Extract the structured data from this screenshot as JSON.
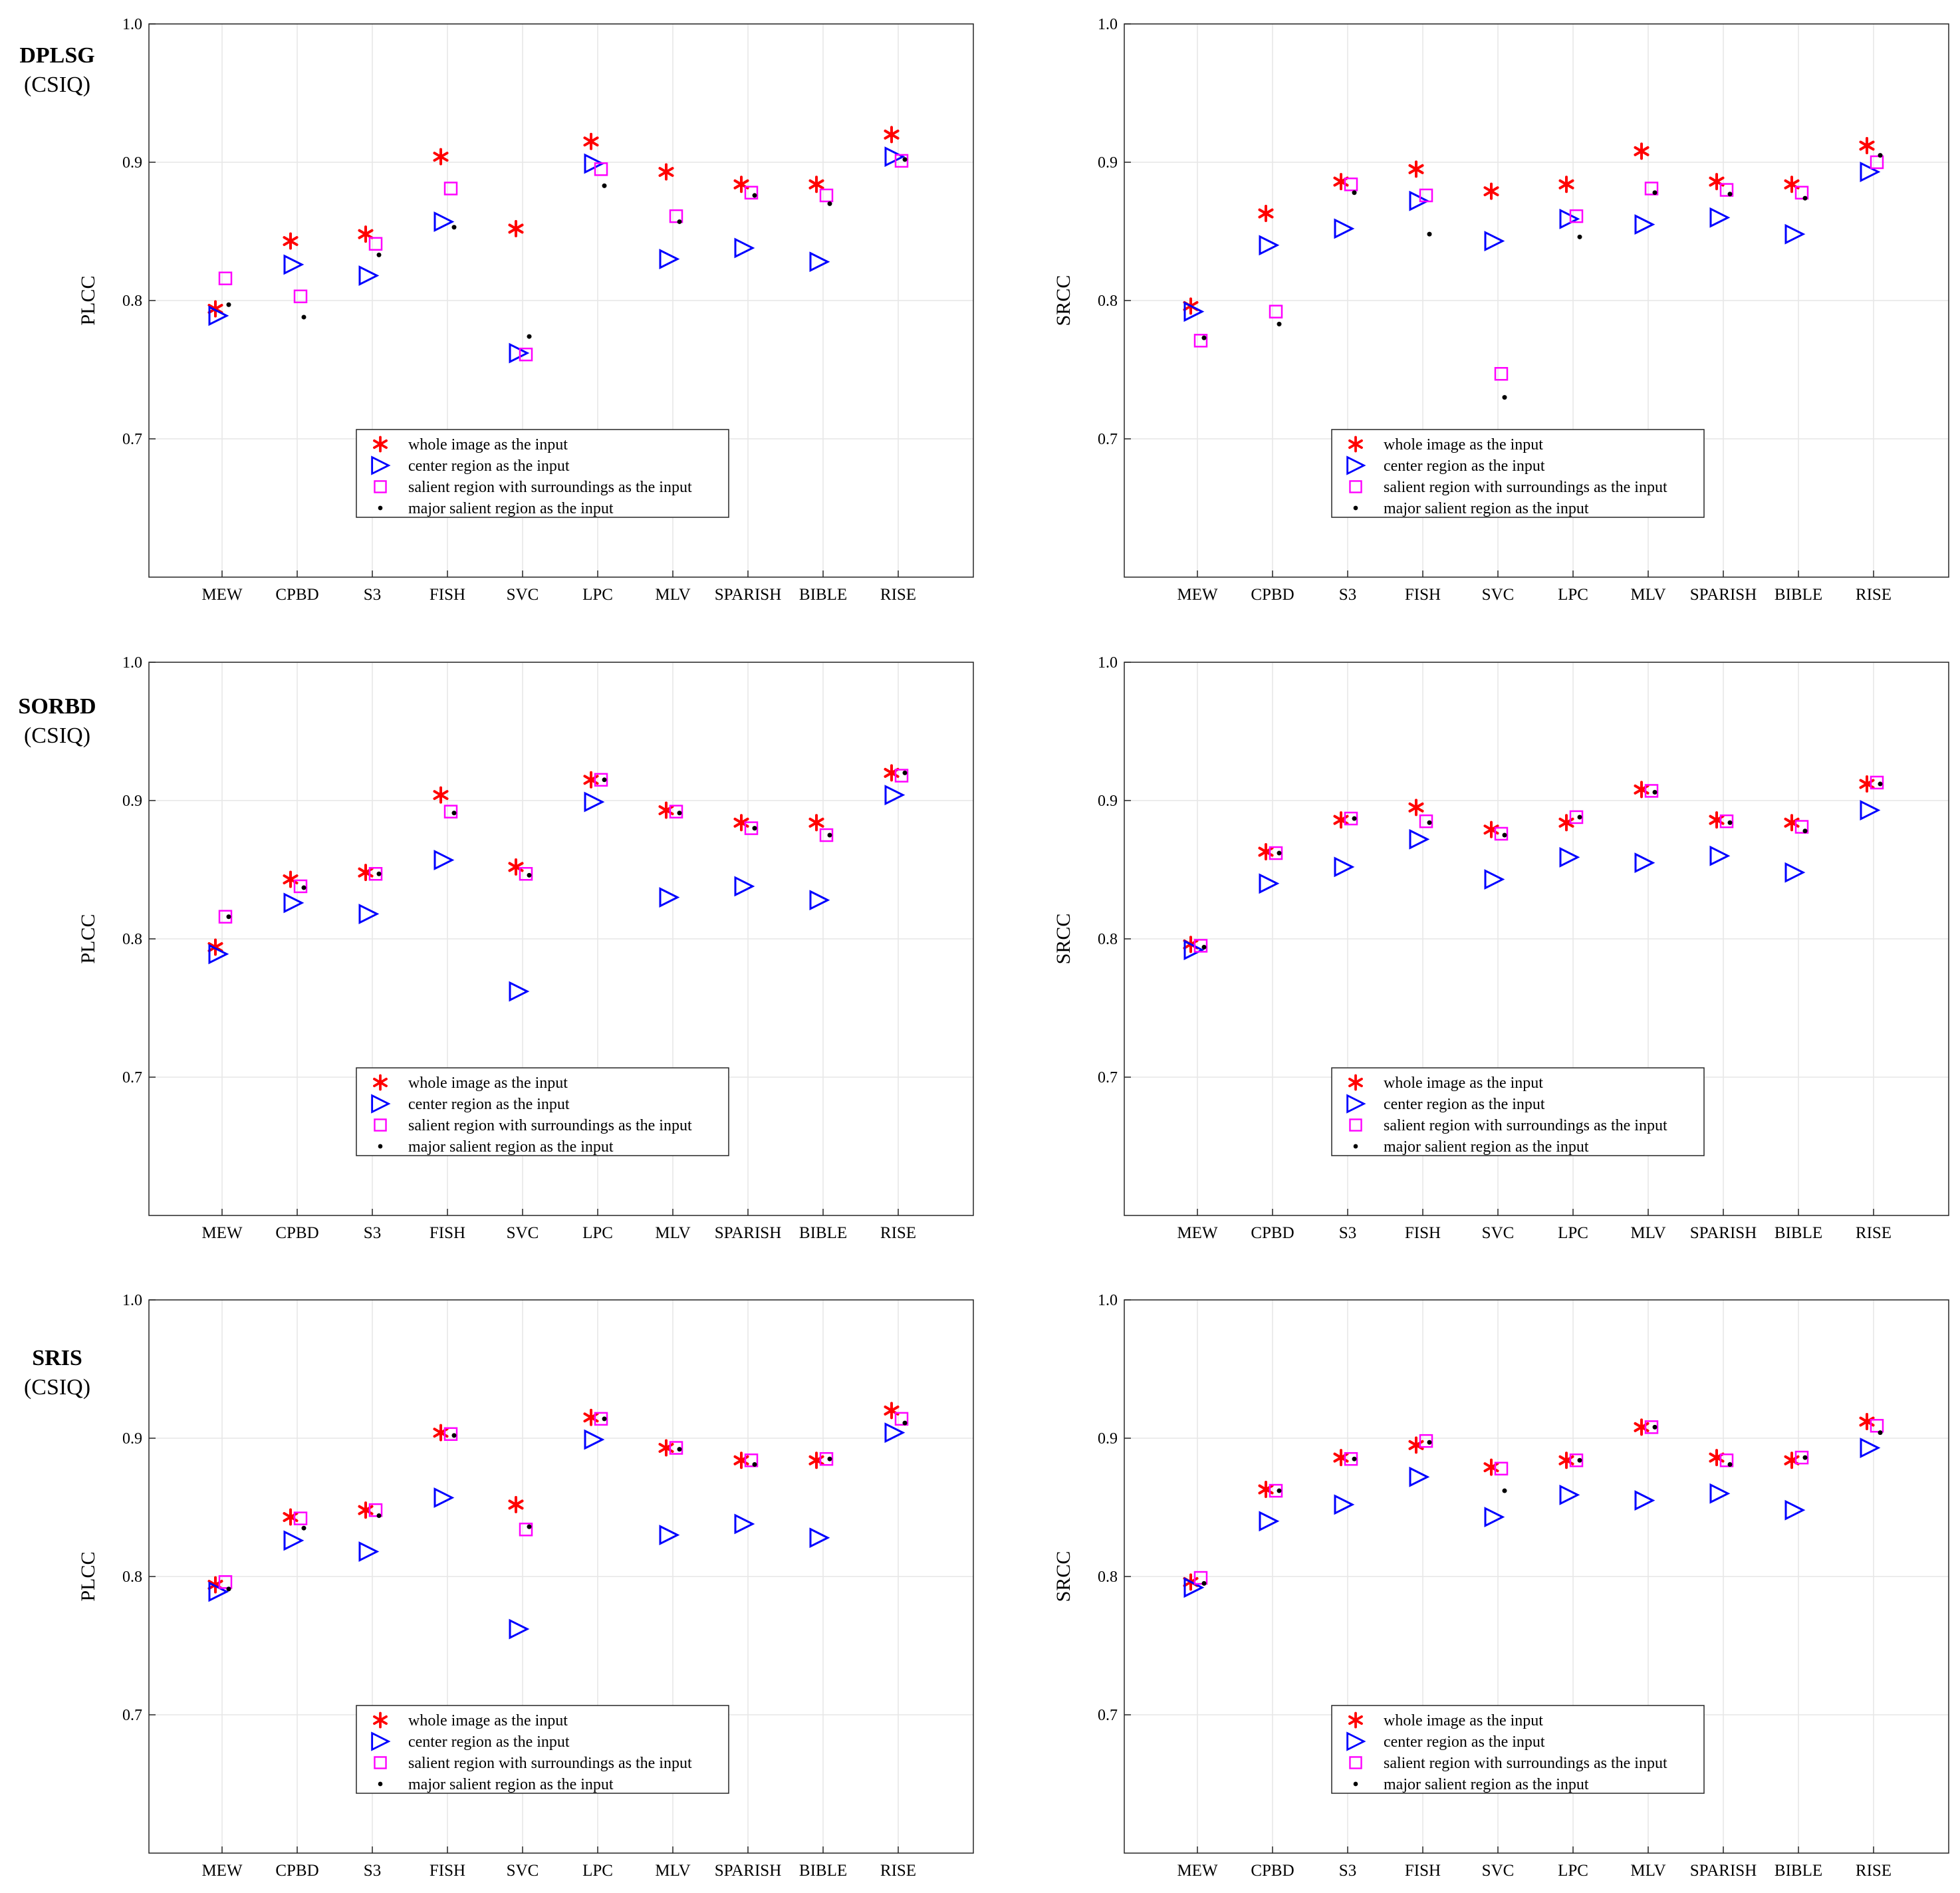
{
  "colors": {
    "whole": "#ff0000",
    "center": "#0000ff",
    "salient": "#ff00ff",
    "major": "#000000",
    "grid": "#e6e6e6",
    "axis": "#262626"
  },
  "legend_entries": [
    {
      "key": "whole",
      "label": "whole image as the input",
      "marker": "asterisk"
    },
    {
      "key": "center",
      "label": "center region as the input",
      "marker": "triangle-right"
    },
    {
      "key": "salient",
      "label": "salient region with surroundings as the input",
      "marker": "square"
    },
    {
      "key": "major",
      "label": "major salient region as the input",
      "marker": "dot"
    }
  ],
  "row_labels": [
    {
      "title": "DPLSG",
      "subtitle": "(CSIQ)"
    },
    {
      "title": "SORBD",
      "subtitle": "(CSIQ)"
    },
    {
      "title": "SRIS",
      "subtitle": "(CSIQ)"
    }
  ],
  "chart_data": [
    {
      "type": "scatter",
      "ylabel": "PLCC",
      "ylim": [
        0.6,
        1.0
      ],
      "yticks": [
        "0.7",
        "0.8",
        "0.9",
        "1.0"
      ],
      "categories": [
        "MEW",
        "CPBD",
        "S3",
        "FISH",
        "SVC",
        "LPC",
        "MLV",
        "SPARISH",
        "BIBLE",
        "RISE"
      ],
      "grid": true,
      "legend": "bottom-left",
      "series": [
        {
          "name": "whole image as the input",
          "key": "whole",
          "values": [
            0.794,
            0.843,
            0.848,
            0.904,
            0.852,
            0.915,
            0.893,
            0.884,
            0.884,
            0.92
          ]
        },
        {
          "name": "center region as the input",
          "key": "center",
          "values": [
            0.789,
            0.826,
            0.818,
            0.857,
            0.762,
            0.899,
            0.83,
            0.838,
            0.828,
            0.904
          ]
        },
        {
          "name": "salient region with surroundings as the input",
          "key": "salient",
          "values": [
            0.816,
            0.803,
            0.841,
            0.881,
            0.761,
            0.895,
            0.861,
            0.878,
            0.876,
            0.901
          ]
        },
        {
          "name": "major salient region as the input",
          "key": "major",
          "values": [
            0.797,
            0.788,
            0.833,
            0.853,
            0.774,
            0.883,
            0.857,
            0.876,
            0.87,
            0.902
          ]
        }
      ]
    },
    {
      "type": "scatter",
      "ylabel": "SRCC",
      "ylim": [
        0.6,
        1.0
      ],
      "yticks": [
        "0.7",
        "0.8",
        "0.9",
        "1.0"
      ],
      "categories": [
        "MEW",
        "CPBD",
        "S3",
        "FISH",
        "SVC",
        "LPC",
        "MLV",
        "SPARISH",
        "BIBLE",
        "RISE"
      ],
      "grid": true,
      "legend": "bottom-left",
      "series": [
        {
          "name": "whole image as the input",
          "key": "whole",
          "values": [
            0.796,
            0.863,
            0.886,
            0.895,
            0.879,
            0.884,
            0.908,
            0.886,
            0.884,
            0.912
          ]
        },
        {
          "name": "center region as the input",
          "key": "center",
          "values": [
            0.792,
            0.84,
            0.852,
            0.872,
            0.843,
            0.859,
            0.855,
            0.86,
            0.848,
            0.893
          ]
        },
        {
          "name": "salient region with surroundings as the input",
          "key": "salient",
          "values": [
            0.771,
            0.792,
            0.884,
            0.876,
            0.747,
            0.861,
            0.881,
            0.88,
            0.878,
            0.9
          ]
        },
        {
          "name": "major salient region as the input",
          "key": "major",
          "values": [
            0.773,
            0.783,
            0.878,
            0.848,
            0.73,
            0.846,
            0.878,
            0.877,
            0.874,
            0.905
          ]
        }
      ]
    },
    {
      "type": "scatter",
      "ylabel": "PLCC",
      "ylim": [
        0.6,
        1.0
      ],
      "yticks": [
        "0.7",
        "0.8",
        "0.9",
        "1.0"
      ],
      "categories": [
        "MEW",
        "CPBD",
        "S3",
        "FISH",
        "SVC",
        "LPC",
        "MLV",
        "SPARISH",
        "BIBLE",
        "RISE"
      ],
      "grid": true,
      "legend": "bottom-left",
      "series": [
        {
          "name": "whole image as the input",
          "key": "whole",
          "values": [
            0.794,
            0.843,
            0.848,
            0.904,
            0.852,
            0.915,
            0.893,
            0.884,
            0.884,
            0.92
          ]
        },
        {
          "name": "center region as the input",
          "key": "center",
          "values": [
            0.789,
            0.826,
            0.818,
            0.857,
            0.762,
            0.899,
            0.83,
            0.838,
            0.828,
            0.904
          ]
        },
        {
          "name": "salient region with surroundings as the input",
          "key": "salient",
          "values": [
            0.816,
            0.838,
            0.847,
            0.892,
            0.847,
            0.915,
            0.892,
            0.88,
            0.875,
            0.918
          ]
        },
        {
          "name": "major salient region as the input",
          "key": "major",
          "values": [
            0.816,
            0.837,
            0.847,
            0.891,
            0.846,
            0.915,
            0.891,
            0.88,
            0.875,
            0.92
          ]
        }
      ]
    },
    {
      "type": "scatter",
      "ylabel": "SRCC",
      "ylim": [
        0.6,
        1.0
      ],
      "yticks": [
        "0.7",
        "0.8",
        "0.9",
        "1.0"
      ],
      "categories": [
        "MEW",
        "CPBD",
        "S3",
        "FISH",
        "SVC",
        "LPC",
        "MLV",
        "SPARISH",
        "BIBLE",
        "RISE"
      ],
      "grid": true,
      "legend": "bottom-left",
      "series": [
        {
          "name": "whole image as the input",
          "key": "whole",
          "values": [
            0.796,
            0.863,
            0.886,
            0.895,
            0.879,
            0.884,
            0.908,
            0.886,
            0.884,
            0.912
          ]
        },
        {
          "name": "center region as the input",
          "key": "center",
          "values": [
            0.792,
            0.84,
            0.852,
            0.872,
            0.843,
            0.859,
            0.855,
            0.86,
            0.848,
            0.893
          ]
        },
        {
          "name": "salient region with surroundings as the input",
          "key": "salient",
          "values": [
            0.795,
            0.862,
            0.887,
            0.885,
            0.876,
            0.888,
            0.907,
            0.885,
            0.881,
            0.913
          ]
        },
        {
          "name": "major salient region as the input",
          "key": "major",
          "values": [
            0.794,
            0.862,
            0.887,
            0.884,
            0.875,
            0.888,
            0.906,
            0.884,
            0.878,
            0.912
          ]
        }
      ]
    },
    {
      "type": "scatter",
      "ylabel": "PLCC",
      "ylim": [
        0.6,
        1.0
      ],
      "yticks": [
        "0.7",
        "0.8",
        "0.9",
        "1.0"
      ],
      "categories": [
        "MEW",
        "CPBD",
        "S3",
        "FISH",
        "SVC",
        "LPC",
        "MLV",
        "SPARISH",
        "BIBLE",
        "RISE"
      ],
      "grid": true,
      "legend": "bottom-left",
      "series": [
        {
          "name": "whole image as the input",
          "key": "whole",
          "values": [
            0.794,
            0.843,
            0.848,
            0.904,
            0.852,
            0.915,
            0.893,
            0.884,
            0.884,
            0.92
          ]
        },
        {
          "name": "center region as the input",
          "key": "center",
          "values": [
            0.789,
            0.826,
            0.818,
            0.857,
            0.762,
            0.899,
            0.83,
            0.838,
            0.828,
            0.904
          ]
        },
        {
          "name": "salient region with surroundings as the input",
          "key": "salient",
          "values": [
            0.796,
            0.842,
            0.848,
            0.903,
            0.834,
            0.914,
            0.893,
            0.884,
            0.885,
            0.914
          ]
        },
        {
          "name": "major salient region as the input",
          "key": "major",
          "values": [
            0.791,
            0.835,
            0.844,
            0.902,
            0.836,
            0.914,
            0.892,
            0.881,
            0.885,
            0.911
          ]
        }
      ]
    },
    {
      "type": "scatter",
      "ylabel": "SRCC",
      "ylim": [
        0.6,
        1.0
      ],
      "yticks": [
        "0.7",
        "0.8",
        "0.9",
        "1.0"
      ],
      "categories": [
        "MEW",
        "CPBD",
        "S3",
        "FISH",
        "SVC",
        "LPC",
        "MLV",
        "SPARISH",
        "BIBLE",
        "RISE"
      ],
      "grid": true,
      "legend": "bottom-left",
      "series": [
        {
          "name": "whole image as the input",
          "key": "whole",
          "values": [
            0.796,
            0.863,
            0.886,
            0.895,
            0.879,
            0.884,
            0.908,
            0.886,
            0.884,
            0.912
          ]
        },
        {
          "name": "center region as the input",
          "key": "center",
          "values": [
            0.792,
            0.84,
            0.852,
            0.872,
            0.843,
            0.859,
            0.855,
            0.86,
            0.848,
            0.893
          ]
        },
        {
          "name": "salient region with surroundings as the input",
          "key": "salient",
          "values": [
            0.799,
            0.862,
            0.885,
            0.898,
            0.878,
            0.884,
            0.908,
            0.884,
            0.886,
            0.909
          ]
        },
        {
          "name": "major salient region as the input",
          "key": "major",
          "values": [
            0.795,
            0.862,
            0.885,
            0.897,
            0.862,
            0.884,
            0.908,
            0.881,
            0.886,
            0.904
          ]
        }
      ]
    }
  ]
}
